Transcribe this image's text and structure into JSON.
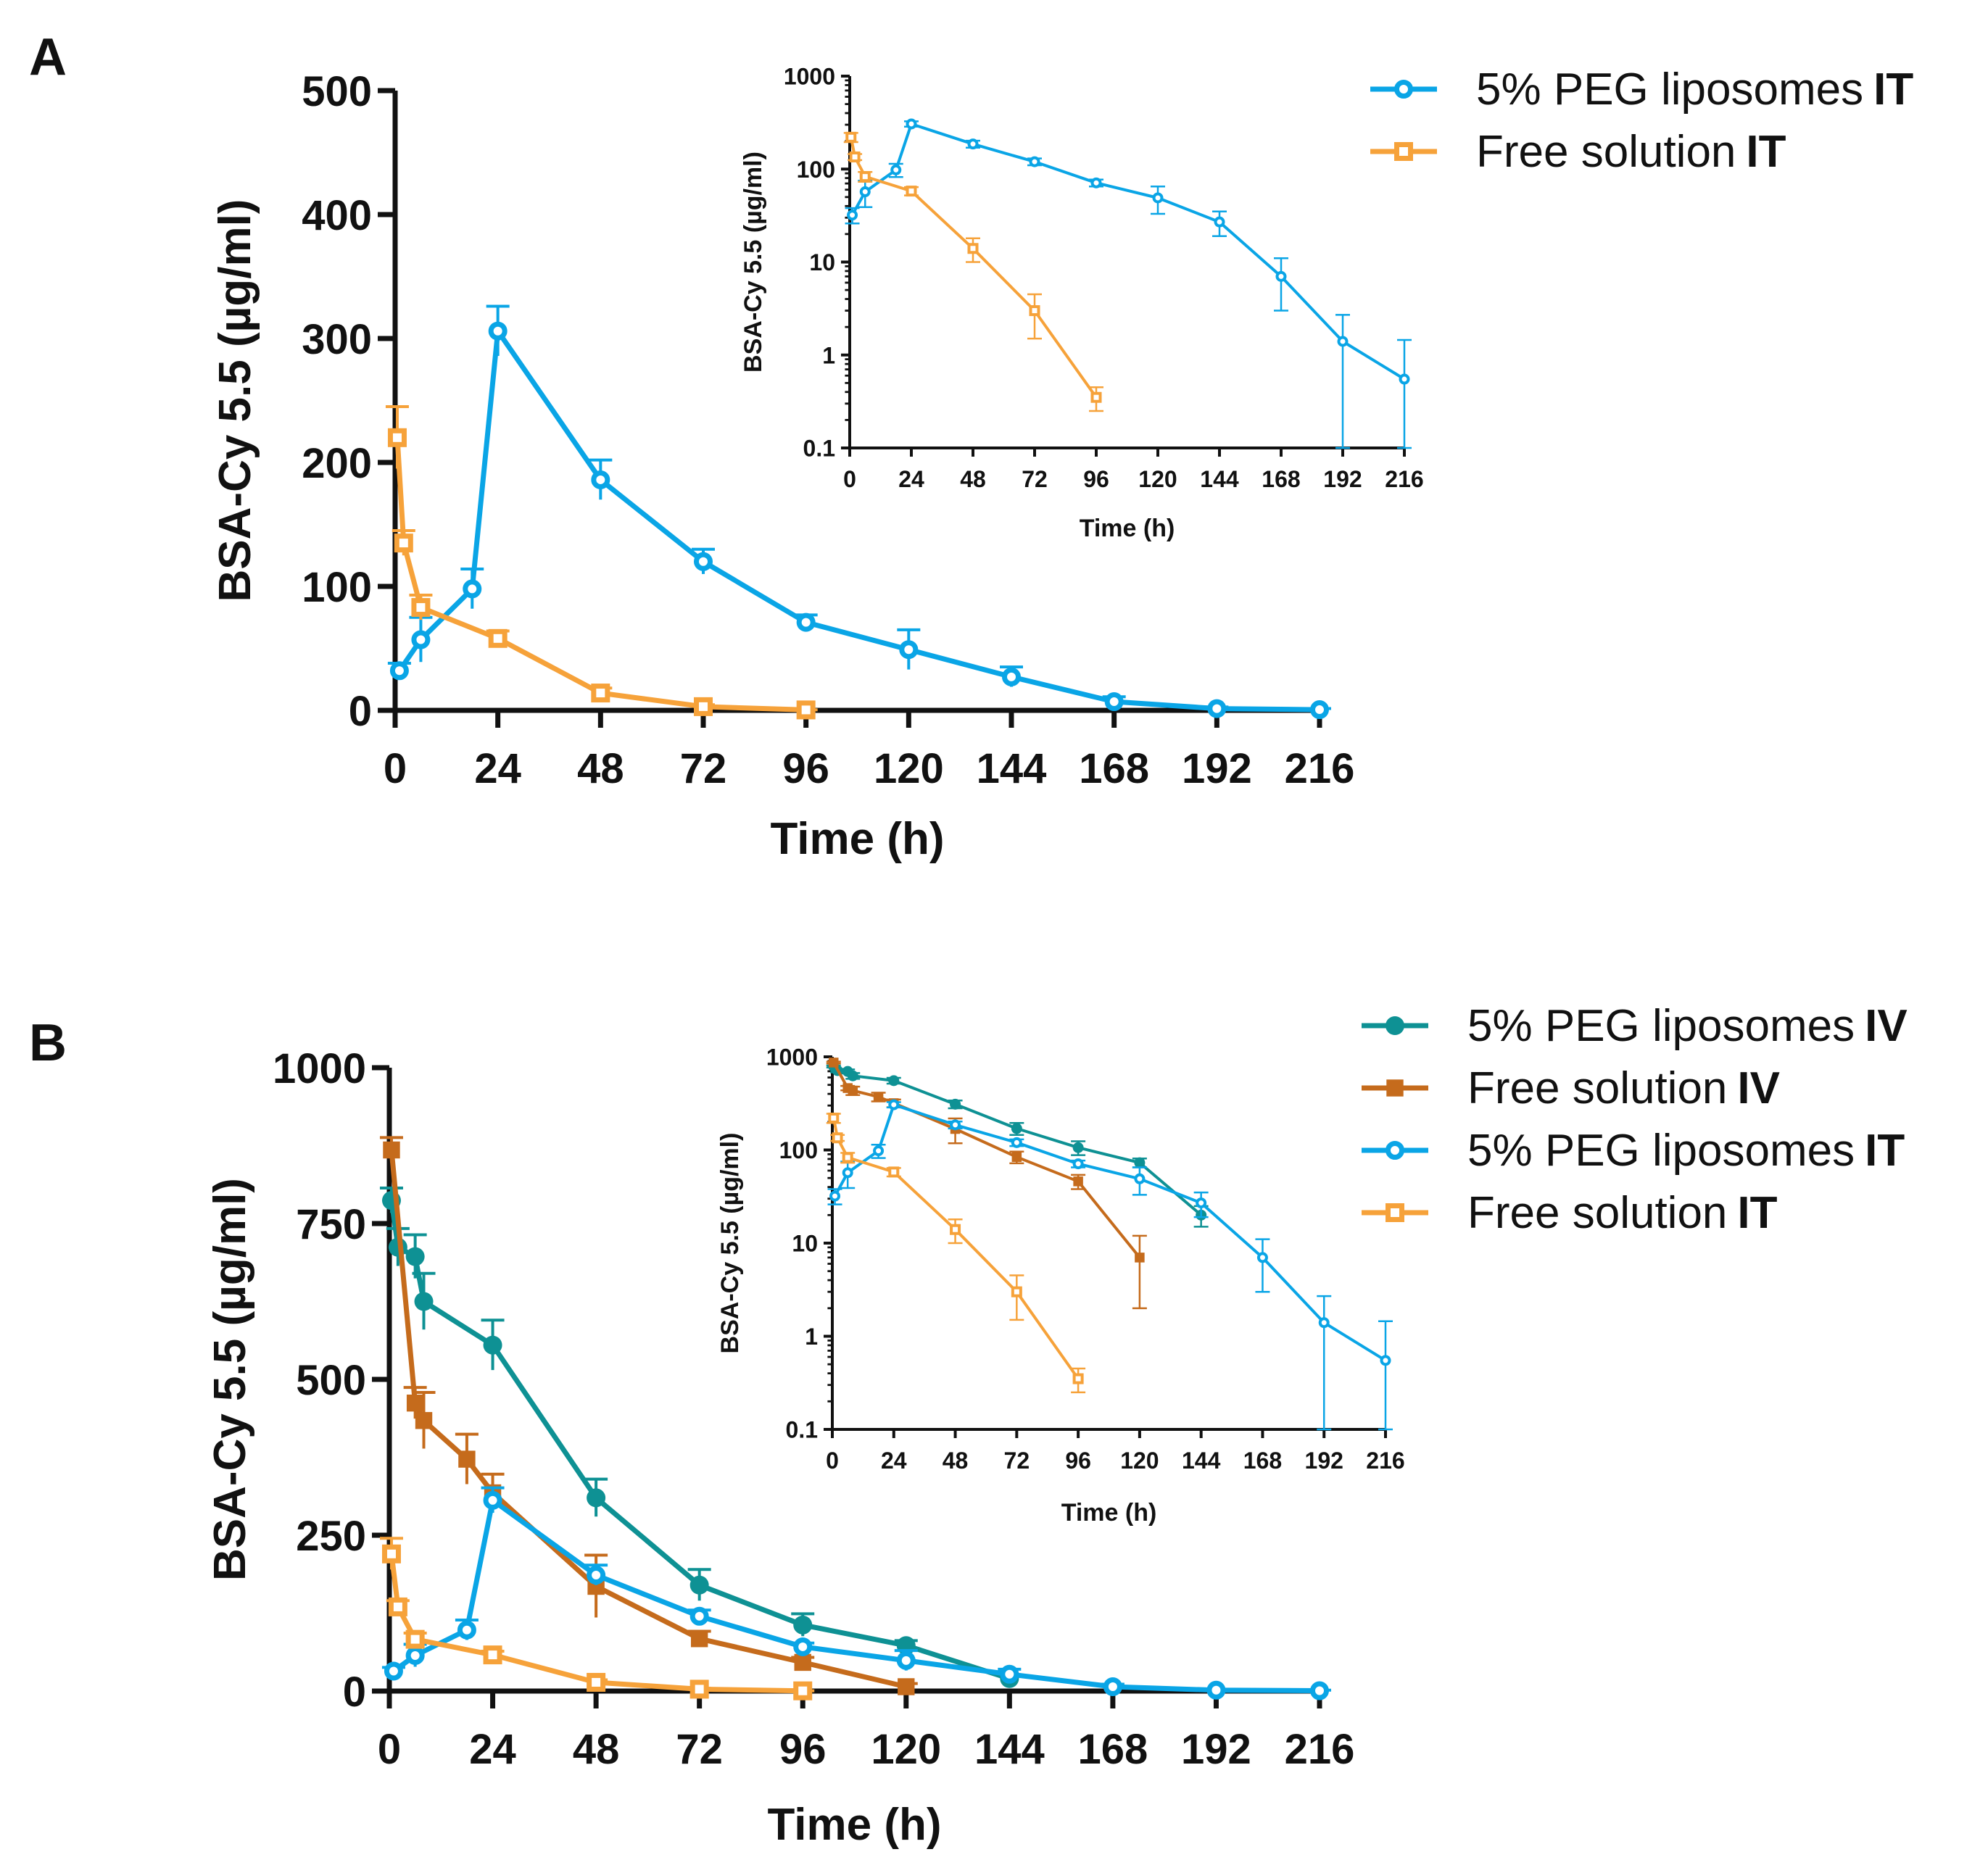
{
  "panels": [
    {
      "letter": "A"
    },
    {
      "letter": "B"
    }
  ],
  "legend_a": [
    {
      "name": "5% PEG liposomes",
      "route": "IT",
      "color": "#0aa5e6",
      "marker": "circle-open"
    },
    {
      "name": "Free solution",
      "route": "IT",
      "color": "#f6a23a",
      "marker": "square-open"
    }
  ],
  "legend_b": [
    {
      "name": "5% PEG liposomes",
      "route": "IV",
      "color": "#0e9194",
      "marker": "circle-filled"
    },
    {
      "name": "Free solution",
      "route": "IV",
      "color": "#c56b1c",
      "marker": "square-filled"
    },
    {
      "name": "5% PEG liposomes",
      "route": "IT",
      "color": "#0aa5e6",
      "marker": "circle-open"
    },
    {
      "name": "Free solution",
      "route": "IT",
      "color": "#f6a23a",
      "marker": "square-open"
    }
  ],
  "chart_data": [
    {
      "id": "A-main",
      "type": "line",
      "scale": "linear",
      "xlabel": "Time (h)",
      "ylabel": "BSA-Cy 5.5 (µg/ml)",
      "xlim": [
        0,
        216
      ],
      "xticks": [
        0,
        24,
        48,
        72,
        96,
        120,
        144,
        168,
        192,
        216
      ],
      "ylim": [
        0,
        500
      ],
      "yticks": [
        0,
        100,
        200,
        300,
        400,
        500
      ],
      "series": [
        {
          "name": "5% PEG liposomes IT",
          "color": "#0aa5e6",
          "marker": "circle-open",
          "x": [
            1,
            6,
            18,
            24,
            48,
            72,
            96,
            120,
            144,
            168,
            192,
            216
          ],
          "y": [
            32,
            57,
            98,
            306,
            186,
            120,
            71,
            49,
            27,
            7,
            1.4,
            0.55
          ],
          "err": [
            6,
            18,
            16,
            20,
            16,
            10,
            6,
            16,
            8,
            4,
            1.3,
            0.9
          ]
        },
        {
          "name": "Free solution IT",
          "color": "#f6a23a",
          "marker": "square-open",
          "x": [
            0.5,
            2,
            6,
            24,
            48,
            72,
            96
          ],
          "y": [
            220,
            135,
            83,
            58,
            14,
            3,
            0.35
          ],
          "err": [
            25,
            10,
            10,
            6,
            4,
            1.5,
            0.1
          ]
        }
      ]
    },
    {
      "id": "A-inset",
      "type": "line",
      "scale": "log",
      "xlabel": "Time (h)",
      "ylabel": "BSA-Cy 5.5 (µg/ml)",
      "xlim": [
        0,
        216
      ],
      "xticks": [
        0,
        24,
        48,
        72,
        96,
        120,
        144,
        168,
        192,
        216
      ],
      "ylim": [
        0.1,
        1000
      ],
      "yticks": [
        0.1,
        1,
        10,
        100,
        1000
      ],
      "ytick_labels": [
        "0.1",
        "1",
        "10",
        "100",
        "1000"
      ],
      "series": [
        {
          "name": "5% PEG liposomes IT",
          "color": "#0aa5e6",
          "marker": "circle-open",
          "x": [
            1,
            6,
            18,
            24,
            48,
            72,
            96,
            120,
            144,
            168,
            192,
            216
          ],
          "y": [
            32,
            57,
            98,
            306,
            186,
            120,
            71,
            49,
            27,
            7,
            1.4,
            0.55
          ],
          "err": [
            6,
            18,
            16,
            20,
            16,
            10,
            6,
            16,
            8,
            4,
            1.3,
            0.9
          ]
        },
        {
          "name": "Free solution IT",
          "color": "#f6a23a",
          "marker": "square-open",
          "x": [
            0.5,
            2,
            6,
            24,
            48,
            72,
            96
          ],
          "y": [
            220,
            135,
            83,
            58,
            14,
            3,
            0.35
          ],
          "err": [
            25,
            10,
            10,
            6,
            4,
            1.5,
            0.1
          ]
        }
      ]
    },
    {
      "id": "B-main",
      "type": "line",
      "scale": "linear",
      "xlabel": "Time (h)",
      "ylabel": "BSA-Cy 5.5 (µg/ml)",
      "xlim": [
        0,
        216
      ],
      "xticks": [
        0,
        24,
        48,
        72,
        96,
        120,
        144,
        168,
        192,
        216
      ],
      "ylim": [
        0,
        1000
      ],
      "yticks": [
        0,
        250,
        500,
        750,
        1000
      ],
      "series": [
        {
          "name": "5% PEG liposomes IV",
          "color": "#0e9194",
          "marker": "circle-filled",
          "x": [
            0.5,
            2,
            6,
            8,
            24,
            48,
            72,
            96,
            120,
            144
          ],
          "y": [
            787,
            712,
            697,
            625,
            555,
            310,
            170,
            106,
            73,
            20
          ],
          "err": [
            20,
            30,
            35,
            45,
            40,
            30,
            25,
            18,
            8,
            5
          ]
        },
        {
          "name": "Free solution IV",
          "color": "#c56b1c",
          "marker": "square-filled",
          "x": [
            0.5,
            6,
            8,
            18,
            24,
            48,
            72,
            96,
            120
          ],
          "y": [
            868,
            462,
            434,
            372,
            318,
            168,
            84,
            46,
            7
          ],
          "err": [
            20,
            25,
            45,
            40,
            30,
            50,
            12,
            8,
            5
          ]
        },
        {
          "name": "5% PEG liposomes IT",
          "color": "#0aa5e6",
          "marker": "circle-open",
          "x": [
            1,
            6,
            18,
            24,
            48,
            72,
            96,
            120,
            144,
            168,
            192,
            216
          ],
          "y": [
            32,
            57,
            98,
            306,
            186,
            120,
            71,
            49,
            27,
            7,
            1.4,
            0.55
          ],
          "err": [
            6,
            18,
            16,
            20,
            16,
            10,
            6,
            16,
            8,
            4,
            1.3,
            0.9
          ]
        },
        {
          "name": "Free solution IT",
          "color": "#f6a23a",
          "marker": "square-open",
          "x": [
            0.5,
            2,
            6,
            24,
            48,
            72,
            96
          ],
          "y": [
            220,
            135,
            83,
            58,
            14,
            3,
            0.35
          ],
          "err": [
            25,
            10,
            10,
            6,
            4,
            1.5,
            0.1
          ]
        }
      ]
    },
    {
      "id": "B-inset",
      "type": "line",
      "scale": "log",
      "xlabel": "Time (h)",
      "ylabel": "BSA-Cy 5.5 (µg/ml)",
      "xlim": [
        0,
        216
      ],
      "xticks": [
        0,
        24,
        48,
        72,
        96,
        120,
        144,
        168,
        192,
        216
      ],
      "ylim": [
        0.1,
        1000
      ],
      "yticks": [
        0.1,
        1,
        10,
        100,
        1000
      ],
      "ytick_labels": [
        "0.1",
        "1",
        "10",
        "100",
        "1000"
      ],
      "series": [
        {
          "name": "5% PEG liposomes IV",
          "color": "#0e9194",
          "marker": "circle-filled",
          "x": [
            0.5,
            2,
            6,
            8,
            24,
            48,
            72,
            96,
            120,
            144
          ],
          "y": [
            787,
            712,
            697,
            625,
            555,
            310,
            170,
            106,
            73,
            20
          ],
          "err": [
            20,
            30,
            35,
            45,
            40,
            30,
            25,
            18,
            8,
            5
          ]
        },
        {
          "name": "Free solution IV",
          "color": "#c56b1c",
          "marker": "square-filled",
          "x": [
            0.5,
            6,
            8,
            18,
            24,
            48,
            72,
            96,
            120
          ],
          "y": [
            868,
            462,
            434,
            372,
            318,
            168,
            84,
            46,
            7
          ],
          "err": [
            20,
            25,
            45,
            40,
            30,
            50,
            12,
            8,
            5
          ]
        },
        {
          "name": "5% PEG liposomes IT",
          "color": "#0aa5e6",
          "marker": "circle-open",
          "x": [
            1,
            6,
            18,
            24,
            48,
            72,
            96,
            120,
            144,
            168,
            192,
            216
          ],
          "y": [
            32,
            57,
            98,
            306,
            186,
            120,
            71,
            49,
            27,
            7,
            1.4,
            0.55
          ],
          "err": [
            6,
            18,
            16,
            20,
            16,
            10,
            6,
            16,
            8,
            4,
            1.3,
            0.9
          ]
        },
        {
          "name": "Free solution IT",
          "color": "#f6a23a",
          "marker": "square-open",
          "x": [
            0.5,
            2,
            6,
            24,
            48,
            72,
            96
          ],
          "y": [
            220,
            135,
            83,
            58,
            14,
            3,
            0.35
          ],
          "err": [
            25,
            10,
            10,
            6,
            4,
            1.5,
            0.1
          ]
        }
      ]
    }
  ]
}
